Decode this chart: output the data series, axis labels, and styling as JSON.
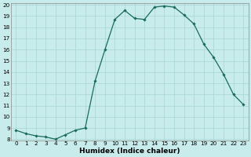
{
  "title": "",
  "xlabel": "Humidex (Indice chaleur)",
  "x": [
    0,
    1,
    2,
    3,
    4,
    5,
    6,
    7,
    8,
    9,
    10,
    11,
    12,
    13,
    14,
    15,
    16,
    17,
    18,
    19,
    20,
    21,
    22,
    23
  ],
  "y": [
    8.8,
    8.5,
    8.3,
    8.2,
    8.0,
    8.4,
    8.8,
    9.0,
    13.2,
    16.0,
    18.7,
    19.5,
    18.8,
    18.7,
    19.8,
    19.9,
    19.8,
    19.1,
    18.3,
    16.5,
    15.3,
    13.8,
    12.0,
    11.1
  ],
  "ylim": [
    8,
    20
  ],
  "xlim": [
    -0.5,
    23.5
  ],
  "yticks": [
    8,
    9,
    10,
    11,
    12,
    13,
    14,
    15,
    16,
    17,
    18,
    19,
    20
  ],
  "xticks": [
    0,
    1,
    2,
    3,
    4,
    5,
    6,
    7,
    8,
    9,
    10,
    11,
    12,
    13,
    14,
    15,
    16,
    17,
    18,
    19,
    20,
    21,
    22,
    23
  ],
  "line_color": "#1a6b5a",
  "marker": "D",
  "marker_size": 1.8,
  "bg_color": "#c8ecec",
  "grid_color": "#a8d4d4",
  "tick_fontsize": 5.2,
  "xlabel_fontsize": 6.5,
  "linewidth": 0.9
}
